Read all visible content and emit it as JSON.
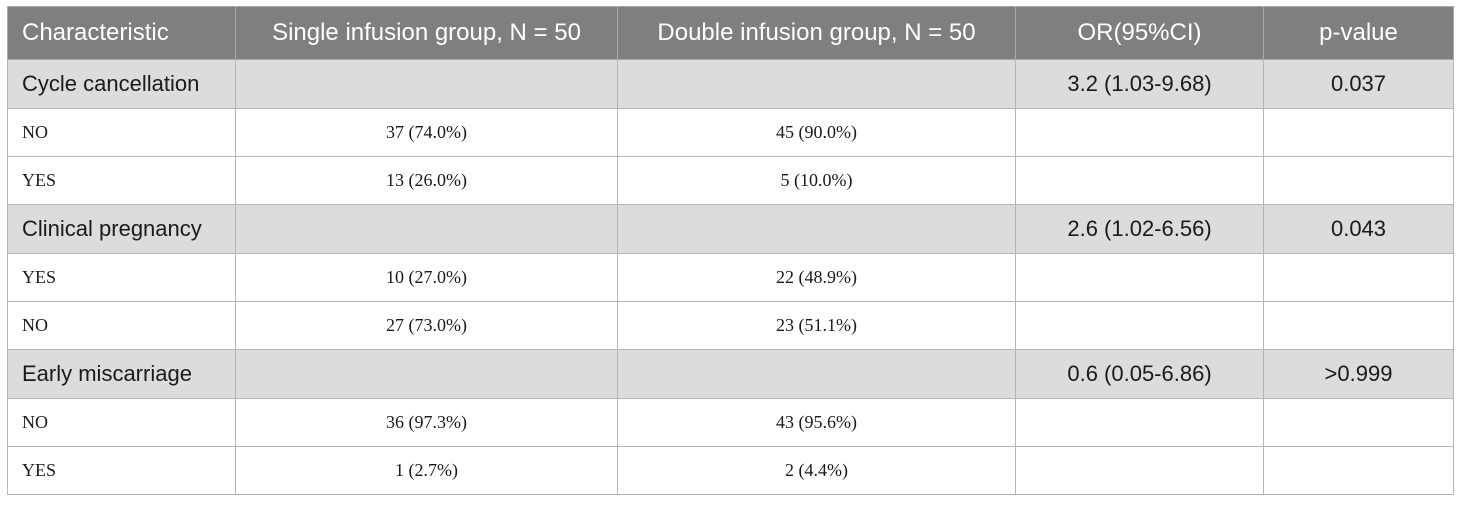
{
  "table": {
    "headers": [
      "Characteristic",
      "Single infusion group, N = 50",
      "Double infusion group, N = 50",
      "OR(95%CI)",
      "p-value"
    ],
    "groups": [
      {
        "label": "Cycle cancellation",
        "or_ci": "3.2 (1.03-9.68)",
        "p": "0.037",
        "rows": [
          {
            "label": "NO",
            "single": "37 (74.0%)",
            "double": "45 (90.0%)"
          },
          {
            "label": "YES",
            "single": "13 (26.0%)",
            "double": "5 (10.0%)"
          }
        ]
      },
      {
        "label": "Clinical pregnancy",
        "or_ci": "2.6 (1.02-6.56)",
        "p": "0.043",
        "rows": [
          {
            "label": "YES",
            "single": "10 (27.0%)",
            "double": "22 (48.9%)"
          },
          {
            "label": "NO",
            "single": "27 (73.0%)",
            "double": "23 (51.1%)"
          }
        ]
      },
      {
        "label": "Early miscarriage",
        "or_ci": "0.6 (0.05-6.86)",
        "p": ">0.999",
        "rows": [
          {
            "label": "NO",
            "single": "36 (97.3%)",
            "double": "43 (95.6%)"
          },
          {
            "label": "YES",
            "single": "1 (2.7%)",
            "double": "2 (4.4%)"
          }
        ]
      }
    ]
  },
  "colors": {
    "header_bg": "#7f7f7f",
    "group_bg": "#dcdcdc"
  }
}
